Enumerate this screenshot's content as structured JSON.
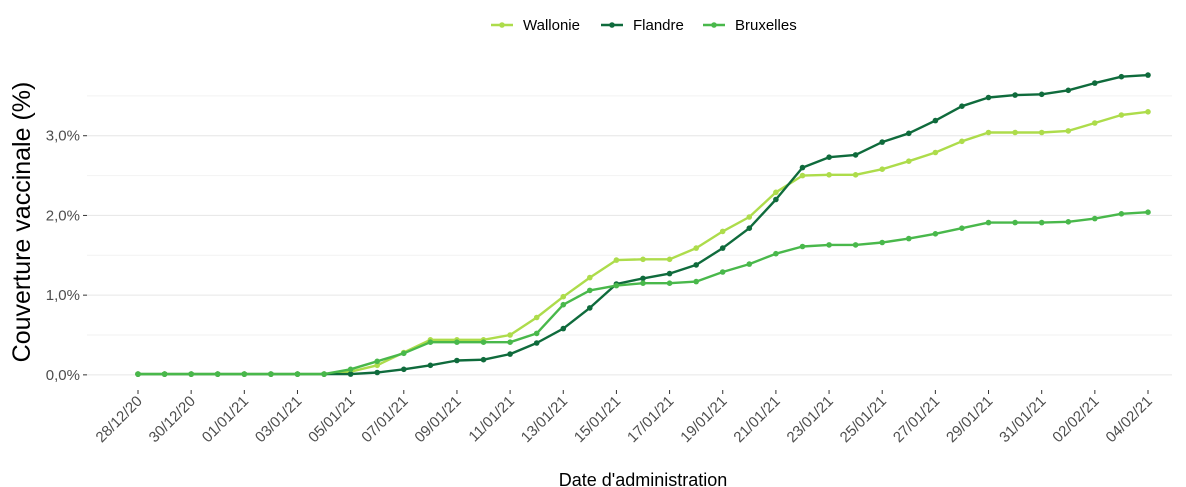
{
  "chart_data": {
    "type": "line",
    "xlabel": "Date d'administration",
    "ylabel": "Couverture vaccinale (%)",
    "x": [
      "28/12/20",
      "29/12/20",
      "30/12/20",
      "31/12/20",
      "01/01/21",
      "02/01/21",
      "03/01/21",
      "04/01/21",
      "05/01/21",
      "06/01/21",
      "07/01/21",
      "08/01/21",
      "09/01/21",
      "10/01/21",
      "11/01/21",
      "12/01/21",
      "13/01/21",
      "14/01/21",
      "15/01/21",
      "16/01/21",
      "17/01/21",
      "18/01/21",
      "19/01/21",
      "20/01/21",
      "21/01/21",
      "22/01/21",
      "23/01/21",
      "24/01/21",
      "25/01/21",
      "26/01/21",
      "27/01/21",
      "28/01/21",
      "29/01/21",
      "30/01/21",
      "31/01/21",
      "01/02/21",
      "02/02/21",
      "03/02/21",
      "04/02/21"
    ],
    "x_tick_labels": [
      "28/12/20",
      "30/12/20",
      "01/01/21",
      "03/01/21",
      "05/01/21",
      "07/01/21",
      "09/01/21",
      "11/01/21",
      "13/01/21",
      "15/01/21",
      "17/01/21",
      "19/01/21",
      "21/01/21",
      "23/01/21",
      "25/01/21",
      "27/01/21",
      "29/01/21",
      "31/01/21",
      "02/02/21",
      "04/02/21"
    ],
    "y_ticks": [
      0,
      1,
      2,
      3
    ],
    "y_tick_labels": [
      "0,0%",
      "1,0%",
      "2,0%",
      "3,0%"
    ],
    "ylim": [
      -0.19,
      3.95
    ],
    "grid": true,
    "legend_position": "top",
    "series": [
      {
        "name": "Wallonie",
        "color": "#addc4b",
        "values": [
          0.01,
          0.01,
          0.01,
          0.01,
          0.01,
          0.01,
          0.01,
          0.01,
          0.04,
          0.12,
          0.28,
          0.44,
          0.44,
          0.44,
          0.5,
          0.72,
          0.98,
          1.22,
          1.44,
          1.45,
          1.45,
          1.59,
          1.8,
          1.98,
          2.29,
          2.5,
          2.51,
          2.51,
          2.58,
          2.68,
          2.79,
          2.93,
          3.04,
          3.04,
          3.04,
          3.06,
          3.16,
          3.26,
          3.3
        ]
      },
      {
        "name": "Flandre",
        "color": "#0f6b3c",
        "values": [
          0.01,
          0.01,
          0.01,
          0.01,
          0.01,
          0.01,
          0.01,
          0.01,
          0.01,
          0.03,
          0.07,
          0.12,
          0.18,
          0.19,
          0.26,
          0.4,
          0.58,
          0.84,
          1.14,
          1.21,
          1.27,
          1.38,
          1.59,
          1.84,
          2.2,
          2.6,
          2.73,
          2.76,
          2.92,
          3.03,
          3.19,
          3.37,
          3.48,
          3.51,
          3.52,
          3.57,
          3.66,
          3.74,
          3.76
        ]
      },
      {
        "name": "Bruxelles",
        "color": "#49b84b",
        "values": [
          0.01,
          0.01,
          0.01,
          0.01,
          0.01,
          0.01,
          0.01,
          0.01,
          0.07,
          0.17,
          0.27,
          0.41,
          0.41,
          0.41,
          0.41,
          0.52,
          0.88,
          1.06,
          1.12,
          1.15,
          1.15,
          1.17,
          1.29,
          1.39,
          1.52,
          1.61,
          1.63,
          1.63,
          1.66,
          1.71,
          1.77,
          1.84,
          1.91,
          1.91,
          1.91,
          1.92,
          1.96,
          2.02,
          2.04
        ]
      }
    ]
  }
}
